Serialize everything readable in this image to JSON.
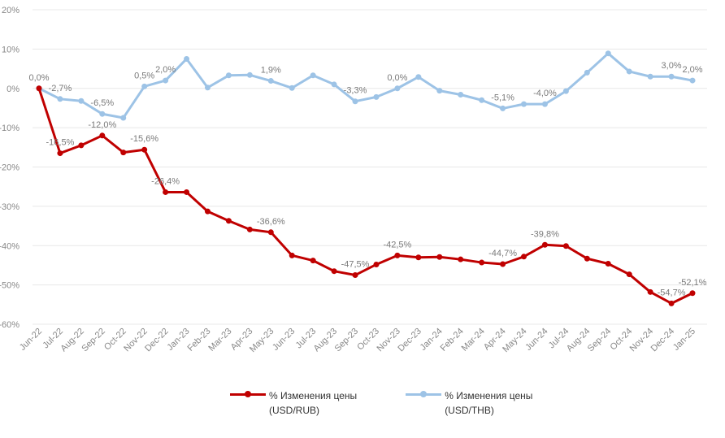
{
  "chart_data": {
    "type": "line",
    "title": "",
    "xlabel": "",
    "ylabel": "",
    "ylim": [
      -60,
      20
    ],
    "yticks": [
      20,
      10,
      0,
      -10,
      -20,
      -30,
      -40,
      -50,
      -60
    ],
    "ytick_labels": [
      "20%",
      "10%",
      "0%",
      "-10%",
      "-20%",
      "-30%",
      "-40%",
      "-50%",
      "-60%"
    ],
    "grid": true,
    "legend_position": "bottom",
    "categories": [
      "Jun-22",
      "Jul-22",
      "Aug-22",
      "Sep-22",
      "Oct-22",
      "Nov-22",
      "Dec-22",
      "Jan-23",
      "Feb-23",
      "Mar-23",
      "Apr-23",
      "May-23",
      "Jun-23",
      "Jul-23",
      "Aug-23",
      "Sep-23",
      "Oct-23",
      "Nov-23",
      "Dec-23",
      "Jan-24",
      "Feb-24",
      "Mar-24",
      "Apr-24",
      "May-24",
      "Jun-24",
      "Jul-24",
      "Aug-24",
      "Sep-24",
      "Oct-24",
      "Nov-24",
      "Dec-24",
      "Jan-25"
    ],
    "series": [
      {
        "name": "% Изменения цены (USD/RUB)",
        "legend_lines": [
          "% Изменения цены",
          "(USD/RUB)"
        ],
        "color": "#c00000",
        "values": [
          0.0,
          -16.5,
          -14.5,
          -12.0,
          -16.3,
          -15.6,
          -26.4,
          -26.4,
          -31.3,
          -33.7,
          -35.9,
          -36.6,
          -42.5,
          -43.8,
          -46.5,
          -47.5,
          -44.8,
          -42.5,
          -43.0,
          -42.9,
          -43.5,
          -44.3,
          -44.7,
          -42.8,
          -39.8,
          -40.1,
          -43.3,
          -44.6,
          -47.3,
          -51.8,
          -54.7,
          -52.1
        ],
        "labels": {
          "0": "0,0%",
          "1": "-16,5%",
          "3": "-12,0%",
          "5": "-15,6%",
          "6": "-26,4%",
          "11": "-36,6%",
          "15": "-47,5%",
          "17": "-42,5%",
          "22": "-44,7%",
          "24": "-39,8%",
          "30": "-54,7%",
          "31": "-52,1%"
        }
      },
      {
        "name": "% Изменения цены (USD/THB)",
        "legend_lines": [
          "% Изменения цены",
          "(USD/THB)"
        ],
        "color": "#9dc3e6",
        "values": [
          0.0,
          -2.7,
          -3.2,
          -6.5,
          -7.5,
          0.5,
          2.0,
          7.5,
          0.2,
          3.3,
          3.4,
          1.9,
          0.1,
          3.3,
          1.0,
          -3.3,
          -2.2,
          0.0,
          2.9,
          -0.6,
          -1.6,
          -3.0,
          -5.1,
          -4.0,
          -4.0,
          -0.7,
          4.0,
          8.9,
          4.3,
          3.0,
          3.0,
          2.0
        ],
        "labels": {
          "1": "-2,7%",
          "3": "-6,5%",
          "5": "0,5%",
          "6": "2,0%",
          "11": "1,9%",
          "15": "-3,3%",
          "17": "0,0%",
          "22": "-5,1%",
          "24": "-4,0%",
          "30": "3,0%",
          "31": "2,0%"
        }
      }
    ]
  }
}
